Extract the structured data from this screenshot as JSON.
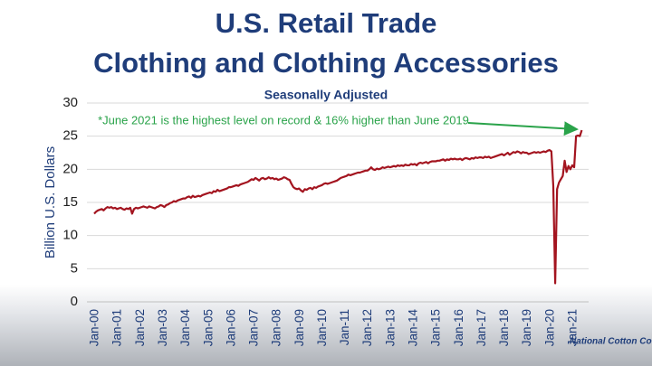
{
  "chart_data": {
    "type": "line",
    "title": "U.S. Retail Trade",
    "subtitle": "Clothing and Clothing Accessories",
    "note": "Seasonally Adjusted",
    "annotation": "*June 2021 is the highest level on record & 16% higher than June 2019",
    "ylabel": "Billion U.S. Dollars",
    "logo": "National Cotton Council",
    "color": "#a3141f",
    "grid": true,
    "ylim": [
      0,
      30
    ],
    "yticks": [
      0,
      5,
      10,
      15,
      20,
      25,
      30
    ],
    "categories": [
      "Jan-00",
      null,
      null,
      null,
      null,
      null,
      null,
      null,
      null,
      null,
      null,
      null,
      "Jan-01",
      null,
      null,
      null,
      null,
      null,
      null,
      null,
      null,
      null,
      null,
      null,
      "Jan-02",
      null,
      null,
      null,
      null,
      null,
      null,
      null,
      null,
      null,
      null,
      null,
      "Jan-03",
      null,
      null,
      null,
      null,
      null,
      null,
      null,
      null,
      null,
      null,
      null,
      "Jan-04",
      null,
      null,
      null,
      null,
      null,
      null,
      null,
      null,
      null,
      null,
      null,
      "Jan-05",
      null,
      null,
      null,
      null,
      null,
      null,
      null,
      null,
      null,
      null,
      null,
      "Jan-06",
      null,
      null,
      null,
      null,
      null,
      null,
      null,
      null,
      null,
      null,
      null,
      "Jan-07",
      null,
      null,
      null,
      null,
      null,
      null,
      null,
      null,
      null,
      null,
      null,
      "Jan-08",
      null,
      null,
      null,
      null,
      null,
      null,
      null,
      null,
      null,
      null,
      null,
      "Jan-09",
      null,
      null,
      null,
      null,
      null,
      null,
      null,
      null,
      null,
      null,
      null,
      "Jan-10",
      null,
      null,
      null,
      null,
      null,
      null,
      null,
      null,
      null,
      null,
      null,
      "Jan-11",
      null,
      null,
      null,
      null,
      null,
      null,
      null,
      null,
      null,
      null,
      null,
      "Jan-12",
      null,
      null,
      null,
      null,
      null,
      null,
      null,
      null,
      null,
      null,
      null,
      "Jan-13",
      null,
      null,
      null,
      null,
      null,
      null,
      null,
      null,
      null,
      null,
      null,
      "Jan-14",
      null,
      null,
      null,
      null,
      null,
      null,
      null,
      null,
      null,
      null,
      null,
      "Jan-15",
      null,
      null,
      null,
      null,
      null,
      null,
      null,
      null,
      null,
      null,
      null,
      "Jan-16",
      null,
      null,
      null,
      null,
      null,
      null,
      null,
      null,
      null,
      null,
      null,
      "Jan-17",
      null,
      null,
      null,
      null,
      null,
      null,
      null,
      null,
      null,
      null,
      null,
      "Jan-18",
      null,
      null,
      null,
      null,
      null,
      null,
      null,
      null,
      null,
      null,
      null,
      "Jan-19",
      null,
      null,
      null,
      null,
      null,
      null,
      null,
      null,
      null,
      null,
      null,
      "Jan-20",
      null,
      null,
      null,
      null,
      null,
      null,
      null,
      null,
      null,
      null,
      null,
      "Jan-21",
      null,
      null,
      null,
      null,
      null
    ],
    "values": [
      13.3,
      13.6,
      13.8,
      13.9,
      14.0,
      13.8,
      14.1,
      14.3,
      14.2,
      14.3,
      14.1,
      14.2,
      14.0,
      14.1,
      14.2,
      14.0,
      13.9,
      14.1,
      14.0,
      14.2,
      13.3,
      14.0,
      14.2,
      14.1,
      14.2,
      14.3,
      14.4,
      14.3,
      14.2,
      14.4,
      14.3,
      14.2,
      14.1,
      14.3,
      14.4,
      14.6,
      14.5,
      14.3,
      14.6,
      14.7,
      14.9,
      15.0,
      15.2,
      15.1,
      15.3,
      15.4,
      15.5,
      15.6,
      15.6,
      15.8,
      15.9,
      15.7,
      16.0,
      15.8,
      15.9,
      16.0,
      15.9,
      16.1,
      16.2,
      16.3,
      16.4,
      16.5,
      16.4,
      16.7,
      16.6,
      16.9,
      16.7,
      16.8,
      16.9,
      17.0,
      17.1,
      17.3,
      17.3,
      17.4,
      17.5,
      17.6,
      17.5,
      17.7,
      17.8,
      17.9,
      18.0,
      18.1,
      18.3,
      18.5,
      18.4,
      18.7,
      18.5,
      18.3,
      18.6,
      18.7,
      18.5,
      18.6,
      18.8,
      18.6,
      18.7,
      18.5,
      18.6,
      18.4,
      18.5,
      18.6,
      18.8,
      18.7,
      18.5,
      18.4,
      17.8,
      17.3,
      17.1,
      17.0,
      17.1,
      16.8,
      16.6,
      17.0,
      16.9,
      17.1,
      17.2,
      17.0,
      17.3,
      17.2,
      17.4,
      17.5,
      17.6,
      17.8,
      17.9,
      17.8,
      17.9,
      18.0,
      18.1,
      18.2,
      18.3,
      18.5,
      18.7,
      18.8,
      18.9,
      19.0,
      19.2,
      19.1,
      19.2,
      19.3,
      19.4,
      19.5,
      19.5,
      19.6,
      19.7,
      19.8,
      19.8,
      20.0,
      20.3,
      20.0,
      19.9,
      20.1,
      20.0,
      20.1,
      20.3,
      20.2,
      20.3,
      20.4,
      20.3,
      20.4,
      20.5,
      20.4,
      20.6,
      20.5,
      20.6,
      20.5,
      20.7,
      20.6,
      20.6,
      20.8,
      20.7,
      20.8,
      20.6,
      20.9,
      21.0,
      20.9,
      21.0,
      21.1,
      20.9,
      21.1,
      21.2,
      21.2,
      21.2,
      21.3,
      21.3,
      21.4,
      21.5,
      21.3,
      21.5,
      21.4,
      21.6,
      21.5,
      21.6,
      21.5,
      21.5,
      21.6,
      21.4,
      21.6,
      21.7,
      21.6,
      21.5,
      21.7,
      21.6,
      21.8,
      21.7,
      21.8,
      21.8,
      21.7,
      21.9,
      21.8,
      21.9,
      21.7,
      21.8,
      21.9,
      22.0,
      22.1,
      22.2,
      22.3,
      22.1,
      22.3,
      22.5,
      22.2,
      22.4,
      22.6,
      22.5,
      22.7,
      22.6,
      22.4,
      22.6,
      22.5,
      22.5,
      22.3,
      22.4,
      22.5,
      22.6,
      22.5,
      22.6,
      22.5,
      22.6,
      22.7,
      22.6,
      22.8,
      22.9,
      22.7,
      17.5,
      2.8,
      17.0,
      18.0,
      18.5,
      19.0,
      21.3,
      19.6,
      20.5,
      20.0,
      20.6,
      20.3,
      25.0,
      25.1,
      25.0,
      25.9
    ]
  }
}
